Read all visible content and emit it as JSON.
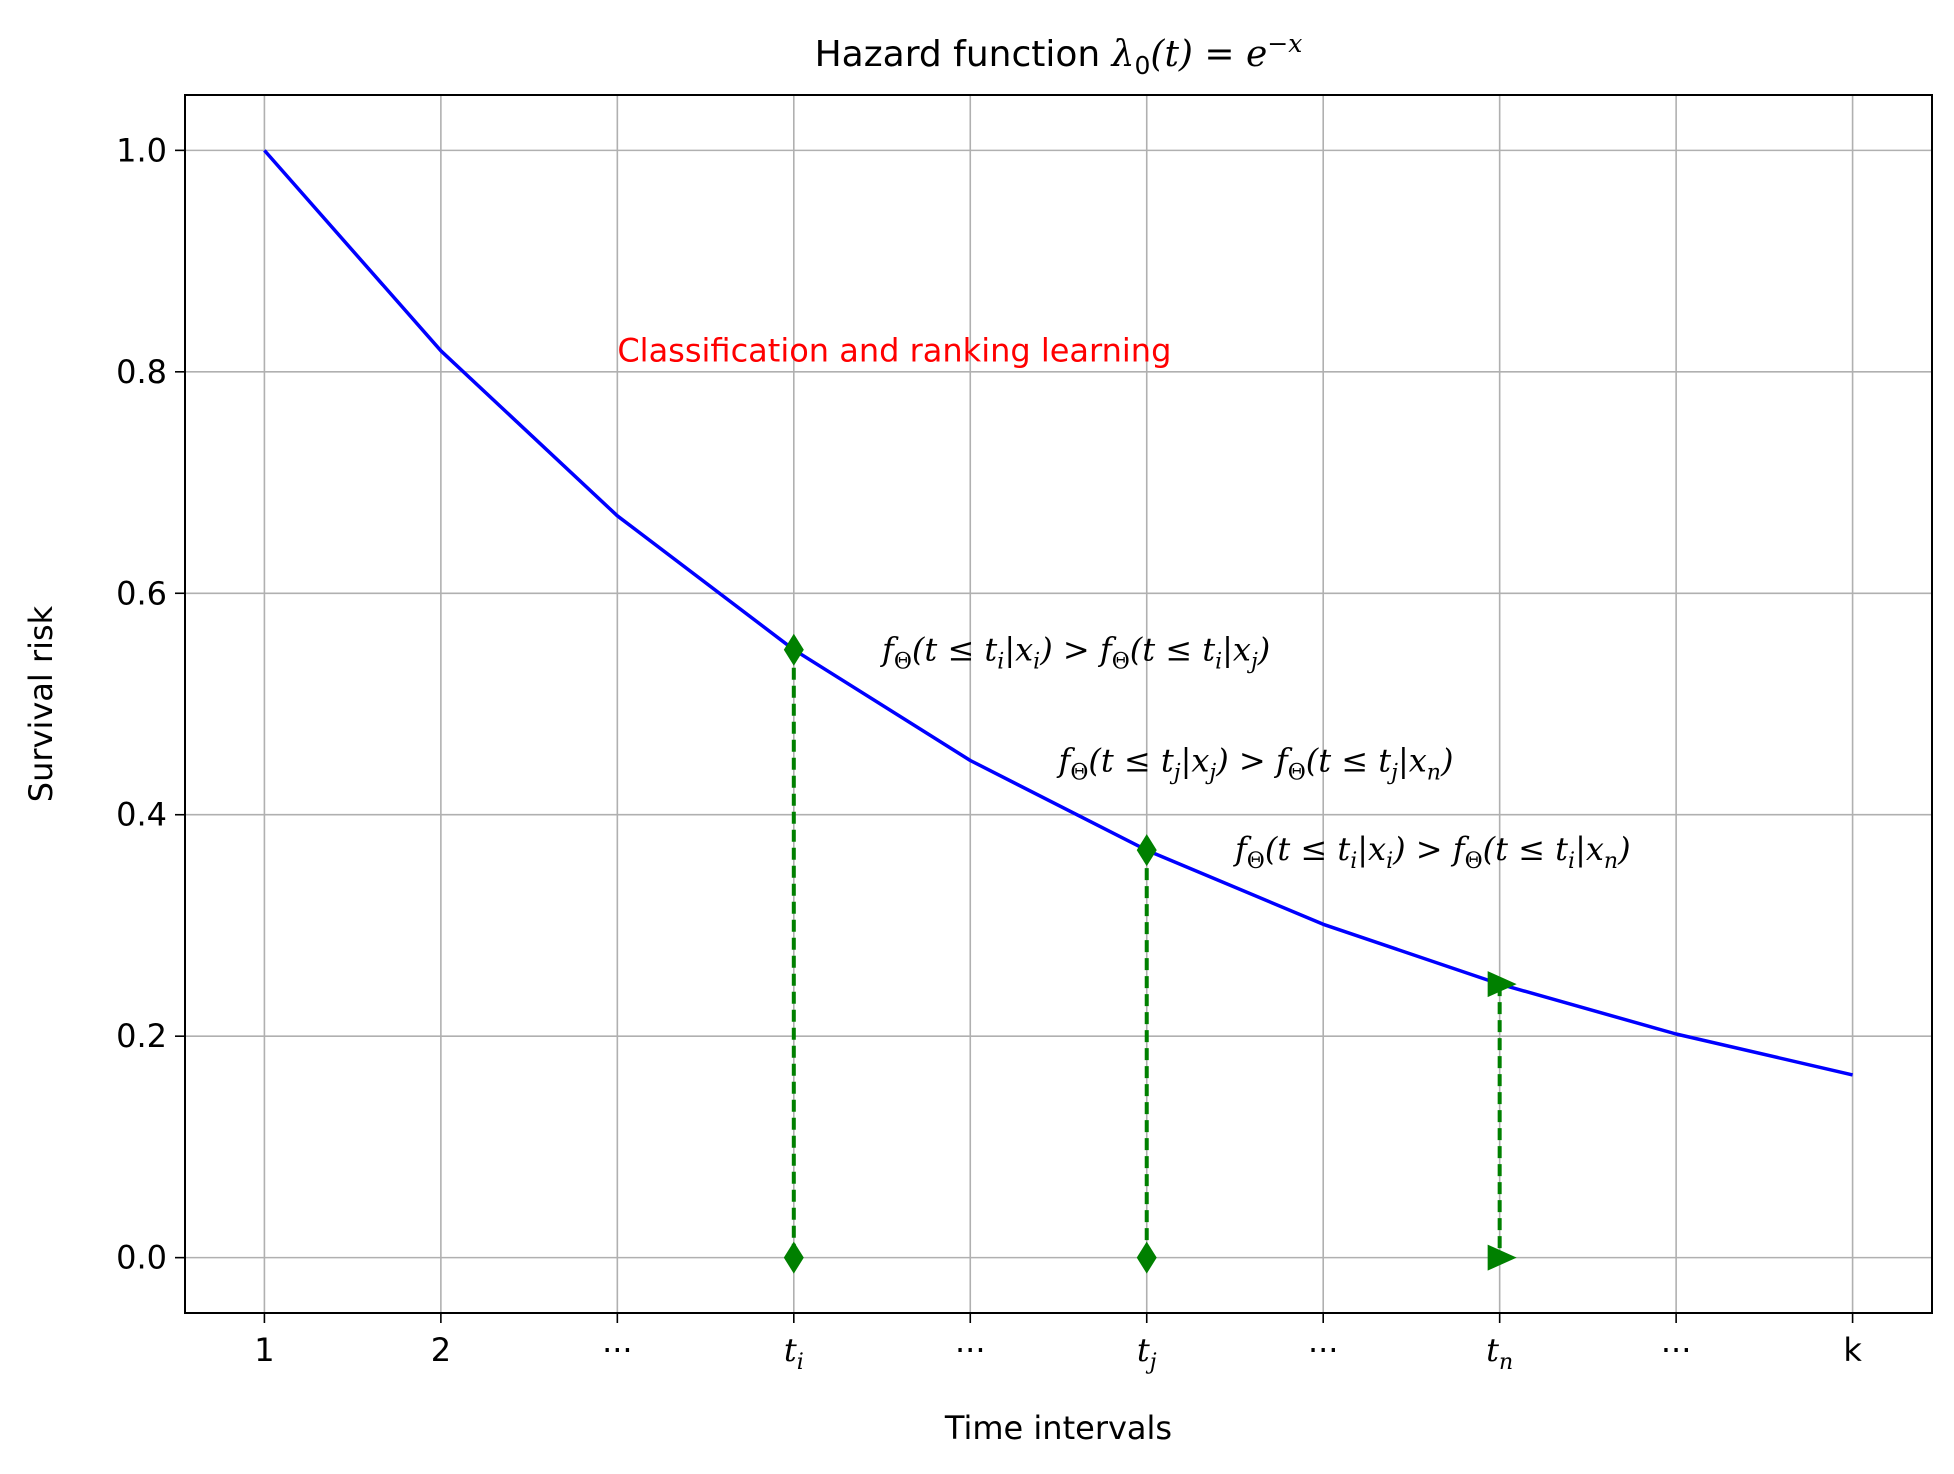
{
  "chart_data": {
    "type": "line",
    "title": {
      "prefix": "Hazard function ",
      "lambda": "λ",
      "sub": "0",
      "arg": "(t) = e",
      "sup": "−x"
    },
    "xlabel": "Time intervals",
    "ylabel": "Survival risk",
    "xlim": [
      0.55,
      10.45
    ],
    "ylim": [
      -0.05,
      1.05
    ],
    "grid": true,
    "x_tick_positions": [
      1,
      2,
      3,
      4,
      5,
      6,
      7,
      8,
      9,
      10
    ],
    "x_tick_labels": [
      {
        "main": "1",
        "sub": "",
        "italic": false
      },
      {
        "main": "2",
        "sub": "",
        "italic": false
      },
      {
        "main": "···",
        "sub": "",
        "italic": false
      },
      {
        "main": "t",
        "sub": "i",
        "italic": true
      },
      {
        "main": "···",
        "sub": "",
        "italic": false
      },
      {
        "main": "t",
        "sub": "j",
        "italic": true
      },
      {
        "main": "···",
        "sub": "",
        "italic": false
      },
      {
        "main": "t",
        "sub": "n",
        "italic": true
      },
      {
        "main": "···",
        "sub": "",
        "italic": false
      },
      {
        "main": "k",
        "sub": "",
        "italic": false
      }
    ],
    "y_ticks": [
      0.0,
      0.2,
      0.4,
      0.6,
      0.8,
      1.0
    ],
    "y_tick_labels": [
      "0.0",
      "0.2",
      "0.4",
      "0.6",
      "0.8",
      "1.0"
    ],
    "series": [
      {
        "color": "#0000ff",
        "x": [
          1,
          2,
          3,
          4,
          5,
          6,
          7,
          8,
          9,
          10
        ],
        "y": [
          1.0,
          0.819,
          0.67,
          0.549,
          0.449,
          0.368,
          0.301,
          0.247,
          0.202,
          0.165
        ]
      }
    ],
    "markers": [
      {
        "x": 4,
        "y_top": 0.549,
        "y_bottom": 0.0,
        "shape": "diamond",
        "color": "#008000"
      },
      {
        "x": 6,
        "y_top": 0.368,
        "y_bottom": 0.0,
        "shape": "diamond",
        "color": "#008000"
      },
      {
        "x": 8,
        "y_top": 0.247,
        "y_bottom": 0.0,
        "shape": "triangle-right",
        "color": "#008000"
      }
    ],
    "annotations": [
      {
        "kind": "plain",
        "text": "Classification and ranking learning",
        "x": 3.0,
        "y": 0.82,
        "color": "#ff0000"
      },
      {
        "kind": "math",
        "x": 4.5,
        "y": 0.55,
        "color": "#000000",
        "a": "i",
        "b": "i",
        "c": "i",
        "d": "j"
      },
      {
        "kind": "math",
        "x": 5.5,
        "y": 0.45,
        "color": "#000000",
        "a": "j",
        "b": "j",
        "c": "j",
        "d": "n"
      },
      {
        "kind": "math",
        "x": 6.5,
        "y": 0.37,
        "color": "#000000",
        "a": "i",
        "b": "i",
        "c": "i",
        "d": "n"
      }
    ]
  }
}
